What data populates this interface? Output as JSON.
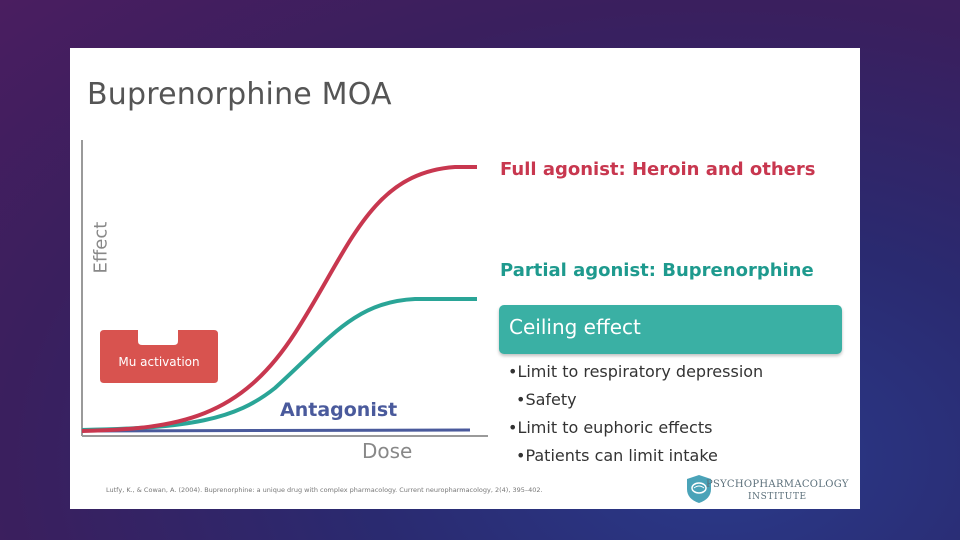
{
  "slide": {
    "title": "Buprenorphine MOA",
    "axes": {
      "y_label": "Effect",
      "x_label": "Dose"
    },
    "receptor": {
      "label": "Mu activation"
    },
    "curves": {
      "full_agonist": {
        "label": "Full agonist: Heroin and others",
        "color": "#c8374f"
      },
      "partial_agonist": {
        "label": "Partial agonist: Buprenorphine",
        "color": "#1e9a8e"
      },
      "antagonist": {
        "label": "Antagonist",
        "color": "#4a5a9c"
      }
    },
    "ceiling": {
      "heading": "Ceiling effect",
      "bullets": [
        "Limit to respiratory depression",
        "Safety",
        "Limit to euphoric effects",
        "Patients can limit intake"
      ]
    },
    "citation": "Lutfy, K., & Cowan, A. (2004). Buprenorphine: a unique drug with complex pharmacology. Current neuropharmacology, 2(4), 395–402.",
    "logo": {
      "line1": "PSYCHOPHARMACOLOGY",
      "line2": "INSTITUTE",
      "icon": "shield-brain-icon"
    }
  }
}
